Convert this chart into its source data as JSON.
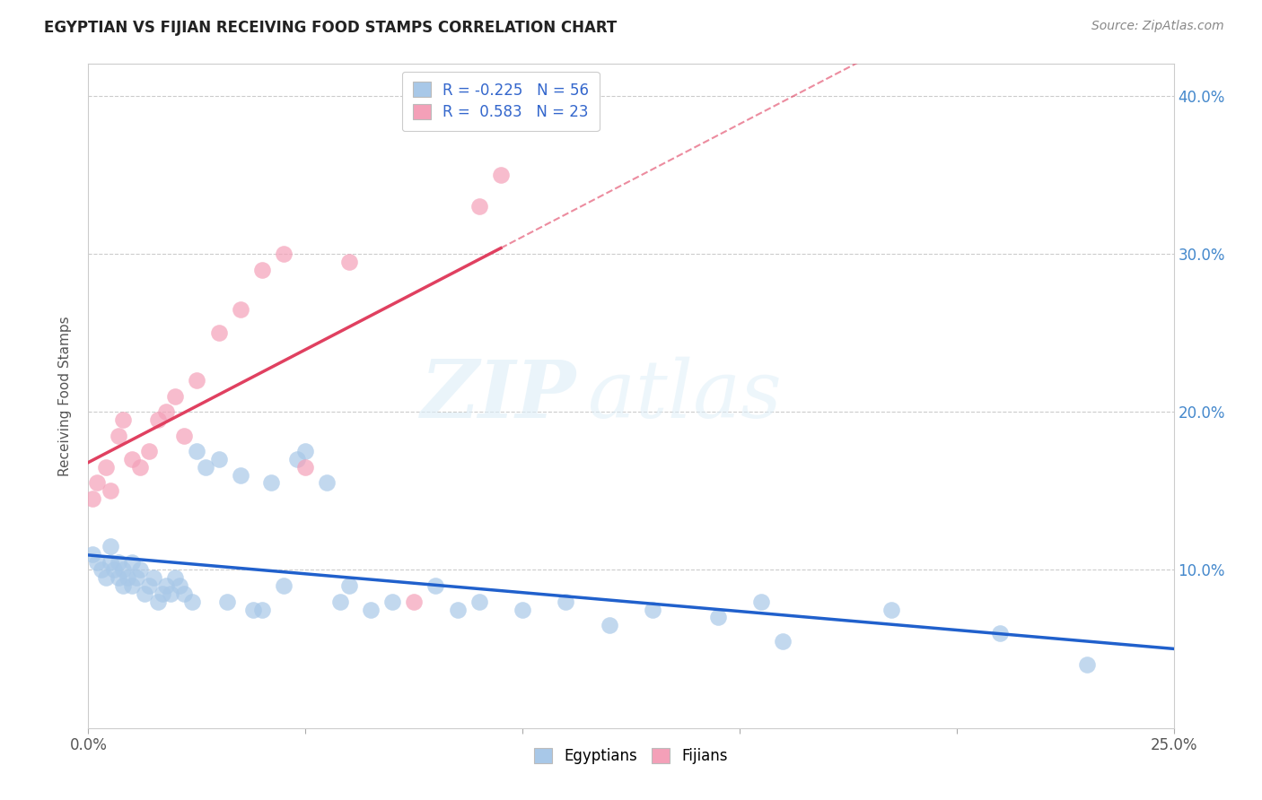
{
  "title": "EGYPTIAN VS FIJIAN RECEIVING FOOD STAMPS CORRELATION CHART",
  "source": "Source: ZipAtlas.com",
  "ylabel": "Receiving Food Stamps",
  "xlim": [
    0.0,
    0.25
  ],
  "ylim": [
    0.0,
    0.42
  ],
  "xticks": [
    0.0,
    0.05,
    0.1,
    0.15,
    0.2,
    0.25
  ],
  "xticklabels": [
    "0.0%",
    "",
    "",
    "",
    "",
    "25.0%"
  ],
  "yticks": [
    0.0,
    0.1,
    0.2,
    0.3,
    0.4
  ],
  "yticklabels": [
    "",
    "10.0%",
    "20.0%",
    "30.0%",
    "40.0%"
  ],
  "egyptian_R": -0.225,
  "egyptian_N": 56,
  "fijian_R": 0.583,
  "fijian_N": 23,
  "egyptian_color": "#a8c8e8",
  "fijian_color": "#f4a0b8",
  "egyptian_line_color": "#2060cc",
  "fijian_line_color": "#e04060",
  "watermark_zip": "ZIP",
  "watermark_atlas": "atlas",
  "legend_text_color": "#3366cc",
  "egyptians_x": [
    0.001,
    0.002,
    0.003,
    0.004,
    0.005,
    0.005,
    0.006,
    0.007,
    0.007,
    0.008,
    0.008,
    0.009,
    0.01,
    0.01,
    0.011,
    0.012,
    0.013,
    0.014,
    0.015,
    0.016,
    0.017,
    0.018,
    0.019,
    0.02,
    0.021,
    0.022,
    0.024,
    0.025,
    0.027,
    0.03,
    0.032,
    0.035,
    0.038,
    0.04,
    0.042,
    0.045,
    0.048,
    0.05,
    0.055,
    0.058,
    0.06,
    0.065,
    0.07,
    0.08,
    0.085,
    0.09,
    0.1,
    0.11,
    0.12,
    0.13,
    0.145,
    0.155,
    0.16,
    0.185,
    0.21,
    0.23
  ],
  "egyptians_y": [
    0.11,
    0.105,
    0.1,
    0.095,
    0.115,
    0.105,
    0.1,
    0.095,
    0.105,
    0.09,
    0.1,
    0.095,
    0.105,
    0.09,
    0.095,
    0.1,
    0.085,
    0.09,
    0.095,
    0.08,
    0.085,
    0.09,
    0.085,
    0.095,
    0.09,
    0.085,
    0.08,
    0.175,
    0.165,
    0.17,
    0.08,
    0.16,
    0.075,
    0.075,
    0.155,
    0.09,
    0.17,
    0.175,
    0.155,
    0.08,
    0.09,
    0.075,
    0.08,
    0.09,
    0.075,
    0.08,
    0.075,
    0.08,
    0.065,
    0.075,
    0.07,
    0.08,
    0.055,
    0.075,
    0.06,
    0.04
  ],
  "fijians_x": [
    0.001,
    0.002,
    0.004,
    0.005,
    0.007,
    0.008,
    0.01,
    0.012,
    0.014,
    0.016,
    0.018,
    0.02,
    0.022,
    0.025,
    0.03,
    0.035,
    0.04,
    0.045,
    0.05,
    0.06,
    0.075,
    0.09,
    0.095
  ],
  "fijians_y": [
    0.145,
    0.155,
    0.165,
    0.15,
    0.185,
    0.195,
    0.17,
    0.165,
    0.175,
    0.195,
    0.2,
    0.21,
    0.185,
    0.22,
    0.25,
    0.265,
    0.29,
    0.3,
    0.165,
    0.295,
    0.08,
    0.33,
    0.35
  ]
}
